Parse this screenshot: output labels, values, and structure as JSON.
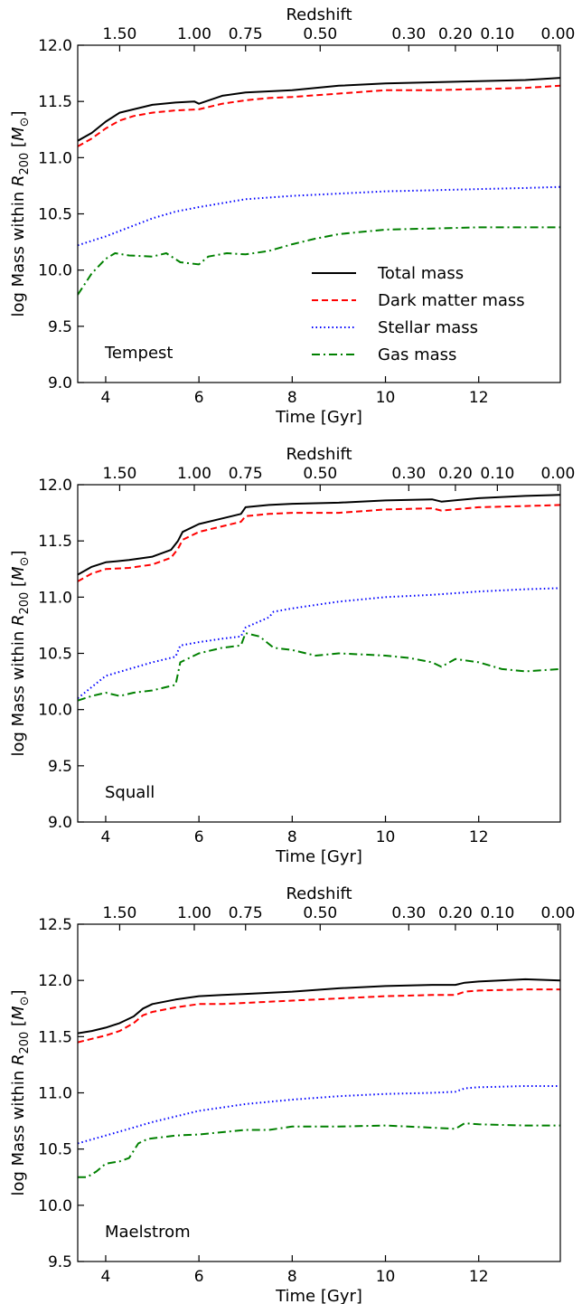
{
  "colors": {
    "total": "#000000",
    "dark_matter": "#ff0000",
    "stellar": "#0000ff",
    "gas": "#008000"
  },
  "legend": {
    "placement": "lower-right",
    "entries": [
      "Total mass",
      "Dark matter mass",
      "Stellar mass",
      "Gas mass"
    ]
  },
  "chart_data": [
    {
      "type": "line",
      "panel_label": "Tempest",
      "xlabel": "Time [Gyr]",
      "ylabel": "log Mass within R_200 [M_⊙]",
      "ylabel_parts": [
        "log Mass within ",
        "R",
        "200",
        " [",
        "M",
        "⊙",
        "]"
      ],
      "top_axis_label": "Redshift",
      "xlim": [
        3.4,
        13.75
      ],
      "ylim": [
        9.0,
        12.0
      ],
      "xticks": [
        4,
        6,
        8,
        10,
        12
      ],
      "xtick_labels": [
        "4",
        "6",
        "8",
        "10",
        "12"
      ],
      "yticks": [
        9.0,
        9.5,
        10.0,
        10.5,
        11.0,
        11.5,
        12.0
      ],
      "ytick_labels": [
        "9.0",
        "9.5",
        "10.0",
        "10.5",
        "11.0",
        "11.5",
        "12.0"
      ],
      "redshift_ticks": [
        {
          "t": 4.3,
          "label": "1.50"
        },
        {
          "t": 5.9,
          "label": "1.00"
        },
        {
          "t": 7.0,
          "label": "0.75"
        },
        {
          "t": 8.6,
          "label": "0.50"
        },
        {
          "t": 10.5,
          "label": "0.30"
        },
        {
          "t": 11.5,
          "label": "0.20"
        },
        {
          "t": 12.4,
          "label": "0.10"
        },
        {
          "t": 13.7,
          "label": "0.00"
        }
      ],
      "series": [
        {
          "name": "Total mass",
          "style": "solid",
          "x": [
            3.4,
            3.7,
            4.0,
            4.3,
            4.6,
            5.0,
            5.5,
            5.9,
            6.0,
            6.5,
            7.0,
            7.5,
            8.0,
            9.0,
            10.0,
            11.0,
            12.0,
            13.0,
            13.75
          ],
          "y": [
            11.15,
            11.22,
            11.32,
            11.4,
            11.43,
            11.47,
            11.49,
            11.5,
            11.48,
            11.55,
            11.58,
            11.59,
            11.6,
            11.64,
            11.66,
            11.67,
            11.68,
            11.69,
            11.71
          ]
        },
        {
          "name": "Dark matter mass",
          "style": "dashed",
          "x": [
            3.4,
            3.7,
            4.0,
            4.3,
            4.6,
            5.0,
            5.5,
            6.0,
            6.5,
            7.0,
            7.5,
            8.0,
            9.0,
            10.0,
            11.0,
            12.0,
            13.0,
            13.75
          ],
          "y": [
            11.1,
            11.17,
            11.26,
            11.33,
            11.37,
            11.4,
            11.42,
            11.43,
            11.48,
            11.51,
            11.53,
            11.54,
            11.57,
            11.6,
            11.6,
            11.61,
            11.62,
            11.64
          ]
        },
        {
          "name": "Stellar mass",
          "style": "dotted",
          "x": [
            3.4,
            4.0,
            4.5,
            5.0,
            5.5,
            6.0,
            7.0,
            8.0,
            9.0,
            10.0,
            11.0,
            12.0,
            13.0,
            13.75
          ],
          "y": [
            10.22,
            10.3,
            10.38,
            10.46,
            10.52,
            10.56,
            10.63,
            10.66,
            10.68,
            10.7,
            10.71,
            10.72,
            10.73,
            10.74
          ]
        },
        {
          "name": "Gas mass",
          "style": "dashdot",
          "x": [
            3.4,
            3.7,
            4.0,
            4.2,
            4.5,
            5.0,
            5.3,
            5.6,
            6.0,
            6.2,
            6.6,
            7.0,
            7.5,
            8.0,
            8.5,
            9.0,
            10.0,
            11.0,
            12.0,
            13.0,
            13.75
          ],
          "y": [
            9.78,
            9.97,
            10.1,
            10.15,
            10.13,
            10.12,
            10.15,
            10.07,
            10.05,
            10.12,
            10.15,
            10.14,
            10.17,
            10.23,
            10.28,
            10.32,
            10.36,
            10.37,
            10.38,
            10.38,
            10.38
          ]
        }
      ]
    },
    {
      "type": "line",
      "panel_label": "Squall",
      "xlabel": "Time [Gyr]",
      "ylabel": "log Mass within R_200 [M_⊙]",
      "ylabel_parts": [
        "log Mass within ",
        "R",
        "200",
        " [",
        "M",
        "⊙",
        "]"
      ],
      "top_axis_label": "Redshift",
      "xlim": [
        3.4,
        13.75
      ],
      "ylim": [
        9.0,
        12.0
      ],
      "xticks": [
        4,
        6,
        8,
        10,
        12
      ],
      "xtick_labels": [
        "4",
        "6",
        "8",
        "10",
        "12"
      ],
      "yticks": [
        9.0,
        9.5,
        10.0,
        10.5,
        11.0,
        11.5,
        12.0
      ],
      "ytick_labels": [
        "9.0",
        "9.5",
        "10.0",
        "10.5",
        "11.0",
        "11.5",
        "12.0"
      ],
      "redshift_ticks": [
        {
          "t": 4.3,
          "label": "1.50"
        },
        {
          "t": 5.9,
          "label": "1.00"
        },
        {
          "t": 7.0,
          "label": "0.75"
        },
        {
          "t": 8.6,
          "label": "0.50"
        },
        {
          "t": 10.5,
          "label": "0.30"
        },
        {
          "t": 11.5,
          "label": "0.20"
        },
        {
          "t": 12.4,
          "label": "0.10"
        },
        {
          "t": 13.7,
          "label": "0.00"
        }
      ],
      "series": [
        {
          "name": "Total mass",
          "style": "solid",
          "x": [
            3.4,
            3.7,
            4.0,
            4.5,
            5.0,
            5.4,
            5.55,
            5.65,
            6.0,
            6.5,
            6.9,
            7.0,
            7.5,
            8.0,
            9.0,
            10.0,
            11.0,
            11.2,
            12.0,
            13.0,
            13.75
          ],
          "y": [
            11.2,
            11.27,
            11.31,
            11.33,
            11.36,
            11.42,
            11.5,
            11.58,
            11.65,
            11.7,
            11.74,
            11.8,
            11.82,
            11.83,
            11.84,
            11.86,
            11.87,
            11.85,
            11.88,
            11.9,
            11.91
          ]
        },
        {
          "name": "Dark matter mass",
          "style": "dashed",
          "x": [
            3.4,
            3.7,
            4.0,
            4.5,
            5.0,
            5.4,
            5.55,
            5.65,
            6.0,
            6.5,
            6.9,
            7.0,
            7.5,
            8.0,
            9.0,
            10.0,
            11.0,
            11.2,
            12.0,
            13.0,
            13.75
          ],
          "y": [
            11.14,
            11.21,
            11.25,
            11.26,
            11.29,
            11.35,
            11.43,
            11.51,
            11.58,
            11.63,
            11.67,
            11.72,
            11.74,
            11.75,
            11.75,
            11.78,
            11.79,
            11.77,
            11.8,
            11.81,
            11.82
          ]
        },
        {
          "name": "Stellar mass",
          "style": "dotted",
          "x": [
            3.4,
            4.0,
            4.5,
            5.0,
            5.5,
            5.6,
            6.0,
            6.5,
            6.9,
            7.0,
            7.5,
            7.6,
            8.0,
            8.5,
            9.0,
            10.0,
            11.0,
            12.0,
            13.0,
            13.75
          ],
          "y": [
            10.1,
            10.3,
            10.36,
            10.42,
            10.47,
            10.57,
            10.6,
            10.63,
            10.65,
            10.73,
            10.82,
            10.87,
            10.9,
            10.93,
            10.96,
            11.0,
            11.02,
            11.05,
            11.07,
            11.08
          ]
        },
        {
          "name": "Gas mass",
          "style": "dashdot",
          "x": [
            3.4,
            3.7,
            4.0,
            4.3,
            4.6,
            5.0,
            5.5,
            5.6,
            6.0,
            6.5,
            6.9,
            7.0,
            7.3,
            7.6,
            8.0,
            8.5,
            9.0,
            9.5,
            10.0,
            10.5,
            11.0,
            11.2,
            11.5,
            12.0,
            12.5,
            13.0,
            13.75
          ],
          "y": [
            10.08,
            10.12,
            10.15,
            10.12,
            10.15,
            10.17,
            10.22,
            10.42,
            10.5,
            10.55,
            10.57,
            10.68,
            10.65,
            10.55,
            10.53,
            10.48,
            10.5,
            10.49,
            10.48,
            10.46,
            10.42,
            10.38,
            10.45,
            10.42,
            10.36,
            10.34,
            10.36
          ]
        }
      ]
    },
    {
      "type": "line",
      "panel_label": "Maelstrom",
      "xlabel": "Time [Gyr]",
      "ylabel": "log Mass within R_200 [M_⊙]",
      "ylabel_parts": [
        "log Mass within ",
        "R",
        "200",
        " [",
        "M",
        "⊙",
        "]"
      ],
      "top_axis_label": "Redshift",
      "xlim": [
        3.4,
        13.75
      ],
      "ylim": [
        9.5,
        12.5
      ],
      "xticks": [
        4,
        6,
        8,
        10,
        12
      ],
      "xtick_labels": [
        "4",
        "6",
        "8",
        "10",
        "12"
      ],
      "yticks": [
        9.5,
        10.0,
        10.5,
        11.0,
        11.5,
        12.0,
        12.5
      ],
      "ytick_labels": [
        "9.5",
        "10.0",
        "10.5",
        "11.0",
        "11.5",
        "12.0",
        "12.5"
      ],
      "redshift_ticks": [
        {
          "t": 4.3,
          "label": "1.50"
        },
        {
          "t": 5.9,
          "label": "1.00"
        },
        {
          "t": 7.0,
          "label": "0.75"
        },
        {
          "t": 8.6,
          "label": "0.50"
        },
        {
          "t": 10.5,
          "label": "0.30"
        },
        {
          "t": 11.5,
          "label": "0.20"
        },
        {
          "t": 12.4,
          "label": "0.10"
        },
        {
          "t": 13.7,
          "label": "0.00"
        }
      ],
      "series": [
        {
          "name": "Total mass",
          "style": "solid",
          "x": [
            3.4,
            3.7,
            4.0,
            4.3,
            4.6,
            4.8,
            5.0,
            5.5,
            6.0,
            6.5,
            7.0,
            8.0,
            9.0,
            10.0,
            11.0,
            11.5,
            11.7,
            12.0,
            13.0,
            13.75
          ],
          "y": [
            11.53,
            11.55,
            11.58,
            11.62,
            11.68,
            11.75,
            11.79,
            11.83,
            11.86,
            11.87,
            11.88,
            11.9,
            11.93,
            11.95,
            11.96,
            11.96,
            11.98,
            11.99,
            12.01,
            12.0
          ]
        },
        {
          "name": "Dark matter mass",
          "style": "dashed",
          "x": [
            3.4,
            3.7,
            4.0,
            4.3,
            4.6,
            4.8,
            5.0,
            5.5,
            6.0,
            6.5,
            7.0,
            8.0,
            9.0,
            10.0,
            11.0,
            11.5,
            11.7,
            12.0,
            13.0,
            13.75
          ],
          "y": [
            11.45,
            11.48,
            11.51,
            11.55,
            11.62,
            11.69,
            11.72,
            11.76,
            11.79,
            11.79,
            11.8,
            11.82,
            11.84,
            11.86,
            11.87,
            11.87,
            11.9,
            11.91,
            11.92,
            11.92
          ]
        },
        {
          "name": "Stellar mass",
          "style": "dotted",
          "x": [
            3.4,
            4.0,
            4.5,
            5.0,
            5.5,
            6.0,
            6.5,
            7.0,
            8.0,
            9.0,
            10.0,
            11.0,
            11.5,
            11.7,
            12.0,
            13.0,
            13.75
          ],
          "y": [
            10.55,
            10.62,
            10.68,
            10.74,
            10.79,
            10.84,
            10.87,
            10.9,
            10.94,
            10.97,
            10.99,
            11.0,
            11.01,
            11.04,
            11.05,
            11.06,
            11.06
          ]
        },
        {
          "name": "Gas mass",
          "style": "dashdot",
          "x": [
            3.4,
            3.6,
            3.8,
            4.0,
            4.3,
            4.5,
            4.7,
            4.9,
            5.5,
            6.0,
            6.5,
            7.0,
            7.5,
            8.0,
            9.0,
            10.0,
            11.0,
            11.5,
            11.7,
            12.0,
            13.0,
            13.75
          ],
          "y": [
            10.25,
            10.25,
            10.3,
            10.37,
            10.39,
            10.42,
            10.55,
            10.59,
            10.62,
            10.63,
            10.65,
            10.67,
            10.67,
            10.7,
            10.7,
            10.71,
            10.69,
            10.68,
            10.73,
            10.72,
            10.71,
            10.71
          ]
        }
      ]
    }
  ]
}
